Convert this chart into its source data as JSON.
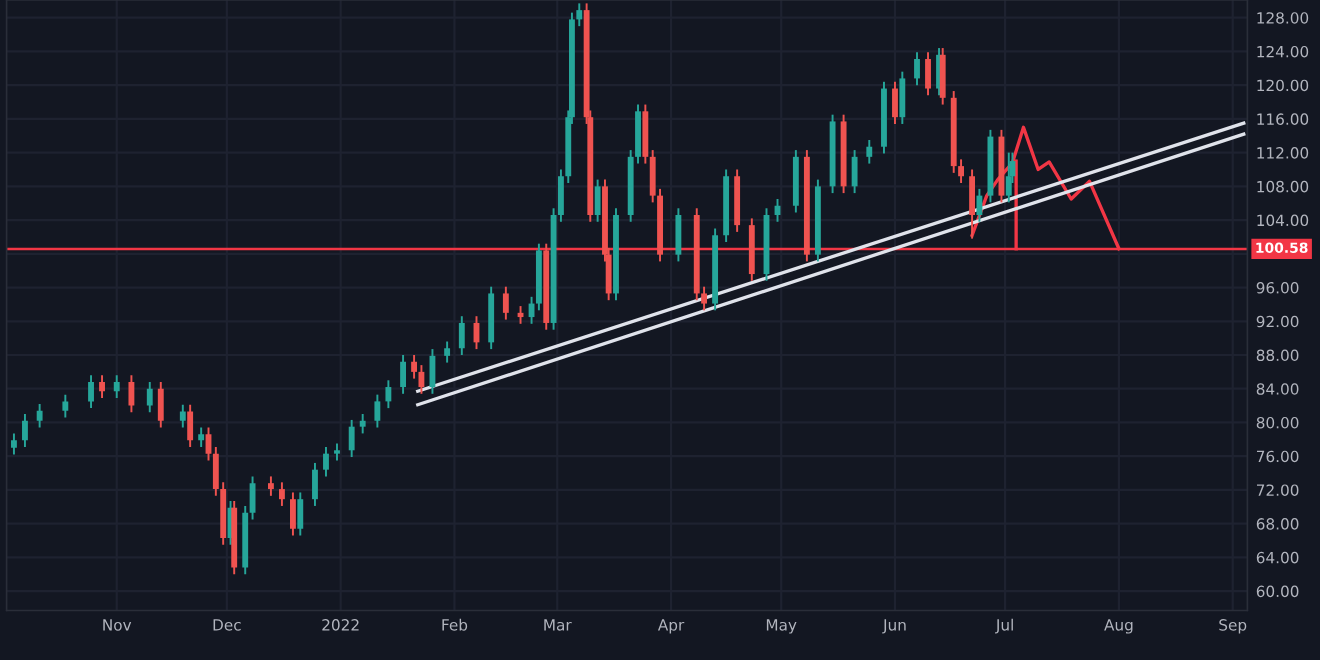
{
  "chart_data": {
    "type": "candlestick",
    "xlim": [
      "2021-10-02",
      "2022-09-05"
    ],
    "ylim": [
      57.7,
      130.1
    ],
    "xticks": [
      {
        "value": "2021-11-01",
        "label": "Nov"
      },
      {
        "value": "2021-12-01",
        "label": "Dec"
      },
      {
        "value": "2022-01-01",
        "label": "2022"
      },
      {
        "value": "2022-02-01",
        "label": "Feb"
      },
      {
        "value": "2022-03-01",
        "label": "Mar"
      },
      {
        "value": "2022-04-01",
        "label": "Apr"
      },
      {
        "value": "2022-05-01",
        "label": "May"
      },
      {
        "value": "2022-06-01",
        "label": "Jun"
      },
      {
        "value": "2022-07-01",
        "label": "Jul"
      },
      {
        "value": "2022-08-01",
        "label": "Aug"
      },
      {
        "value": "2022-09-01",
        "label": "Sep"
      }
    ],
    "yticks": [
      {
        "value": 60,
        "label": "60.00"
      },
      {
        "value": 64,
        "label": "64.00"
      },
      {
        "value": 68,
        "label": "68.00"
      },
      {
        "value": 72,
        "label": "72.00"
      },
      {
        "value": 76,
        "label": "76.00"
      },
      {
        "value": 80,
        "label": "80.00"
      },
      {
        "value": 84,
        "label": "84.00"
      },
      {
        "value": 88,
        "label": "88.00"
      },
      {
        "value": 92,
        "label": "92.00"
      },
      {
        "value": 96,
        "label": "96.00"
      },
      {
        "value": 100,
        "label": null
      },
      {
        "value": 104,
        "label": "104.00"
      },
      {
        "value": 108,
        "label": "108.00"
      },
      {
        "value": 112,
        "label": "112.00"
      },
      {
        "value": 116,
        "label": "116.00"
      },
      {
        "value": 120,
        "label": "120.00"
      },
      {
        "value": 124,
        "label": "124.00"
      },
      {
        "value": 128,
        "label": "128.00"
      }
    ],
    "grid": true,
    "ref_lines": [
      {
        "axis": "y",
        "value": 100.58,
        "label": "100.58",
        "color": "#f23645"
      }
    ],
    "series": [
      {
        "colors": [
          "#26a69a",
          "#26a69a",
          "#26a69a",
          "#26a69a",
          "#26a69a",
          "#ef5350",
          "#26a69a",
          "#ef5350",
          "#26a69a",
          "#ef5350",
          "#26a69a",
          "#ef5350",
          "#26a69a",
          "#ef5350",
          "#ef5350",
          "#ef5350",
          "#26a69a",
          "#ef5350",
          "#26a69a",
          "#26a69a",
          "#ef5350",
          "#ef5350",
          "#ef5350",
          "#26a69a",
          "#26a69a",
          "#26a69a",
          "#26a69a",
          "#26a69a",
          "#26a69a",
          "#26a69a",
          "#26a69a",
          "#26a69a",
          "#ef5350",
          "#ef5350",
          "#26a69a",
          "#26a69a",
          "#26a69a",
          "#ef5350",
          "#26a69a",
          "#ef5350",
          "#ef5350",
          "#26a69a",
          "#26a69a",
          "#ef5350",
          "#26a69a",
          "#26a69a",
          "#26a69a",
          "#26a69a",
          "#26a69a",
          "#ef5350",
          "#ef5350",
          "#26a69a",
          "#ef5350",
          "#ef5350",
          "#26a69a",
          "#26a69a",
          "#26a69a",
          "#ef5350",
          "#ef5350",
          "#ef5350",
          "#26a69a",
          "#ef5350",
          "#ef5350",
          "#26a69a",
          "#26a69a",
          "#ef5350",
          "#ef5350",
          "#26a69a",
          "#26a69a",
          "#26a69a",
          "#ef5350",
          "#26a69a",
          "#26a69a",
          "#ef5350",
          "#26a69a",
          "#26a69a",
          "#26a69a",
          "#ef5350",
          "#26a69a",
          "#26a69a",
          "#ef5350",
          "#26a69a",
          "#ef5350",
          "#ef5350",
          "#ef5350",
          "#ef5350",
          "#26a69a",
          "#26a69a",
          "#ef5350",
          "#26a69a",
          "#26a69a"
        ],
        "x": [
          "2021-10-04",
          "2021-10-07",
          "2021-10-11",
          "2021-10-18",
          "2021-10-25",
          "2021-10-28",
          "2021-11-01",
          "2021-11-05",
          "2021-11-10",
          "2021-11-13",
          "2021-11-19",
          "2021-11-21",
          "2021-11-24",
          "2021-11-26",
          "2021-11-28",
          "2021-11-30",
          "2021-12-02",
          "2021-12-03",
          "2021-12-06",
          "2021-12-08",
          "2021-12-13",
          "2021-12-16",
          "2021-12-19",
          "2021-12-21",
          "2021-12-25",
          "2021-12-28",
          "2021-12-31",
          "2022-01-04",
          "2022-01-07",
          "2022-01-11",
          "2022-01-14",
          "2022-01-18",
          "2022-01-21",
          "2022-01-23",
          "2022-01-26",
          "2022-01-30",
          "2022-02-03",
          "2022-02-07",
          "2022-02-11",
          "2022-02-15",
          "2022-02-19",
          "2022-02-22",
          "2022-02-24",
          "2022-02-26",
          "2022-02-28",
          "2022-03-02",
          "2022-03-04",
          "2022-03-05",
          "2022-03-07",
          "2022-03-09",
          "2022-03-10",
          "2022-03-12",
          "2022-03-14",
          "2022-03-15",
          "2022-03-17",
          "2022-03-21",
          "2022-03-23",
          "2022-03-25",
          "2022-03-27",
          "2022-03-29",
          "2022-04-03",
          "2022-04-08",
          "2022-04-10",
          "2022-04-13",
          "2022-04-16",
          "2022-04-19",
          "2022-04-23",
          "2022-04-27",
          "2022-04-30",
          "2022-05-05",
          "2022-05-08",
          "2022-05-11",
          "2022-05-15",
          "2022-05-18",
          "2022-05-21",
          "2022-05-25",
          "2022-05-29",
          "2022-06-01",
          "2022-06-03",
          "2022-06-07",
          "2022-06-10",
          "2022-06-13",
          "2022-06-14",
          "2022-06-17",
          "2022-06-19",
          "2022-06-22",
          "2022-06-24",
          "2022-06-27",
          "2022-06-30",
          "2022-07-02",
          "2022-07-03"
        ],
        "ohlc": [
          [
            77.0,
            78.7,
            76.2,
            77.9
          ],
          [
            77.9,
            81.0,
            77.1,
            80.2
          ],
          [
            80.2,
            82.2,
            79.4,
            81.4
          ],
          [
            81.4,
            83.3,
            80.6,
            82.5
          ],
          [
            82.5,
            85.6,
            81.7,
            84.8
          ],
          [
            84.8,
            85.6,
            82.9,
            83.7
          ],
          [
            83.7,
            85.6,
            82.9,
            84.8
          ],
          [
            84.8,
            85.6,
            81.2,
            82.0
          ],
          [
            82.0,
            84.8,
            81.2,
            84.0
          ],
          [
            84.0,
            84.8,
            79.4,
            80.2
          ],
          [
            80.2,
            82.1,
            79.4,
            81.3
          ],
          [
            81.3,
            82.1,
            77.1,
            77.9
          ],
          [
            77.9,
            79.4,
            77.1,
            78.6
          ],
          [
            78.6,
            79.4,
            75.5,
            76.3
          ],
          [
            76.3,
            77.1,
            71.3,
            72.1
          ],
          [
            72.1,
            72.9,
            65.5,
            66.3
          ],
          [
            66.3,
            70.7,
            65.5,
            69.9
          ],
          [
            69.9,
            70.7,
            62.0,
            62.8
          ],
          [
            62.8,
            70.1,
            62.0,
            69.3
          ],
          [
            69.3,
            73.6,
            68.5,
            72.8
          ],
          [
            72.8,
            73.6,
            71.3,
            72.1
          ],
          [
            72.1,
            72.9,
            70.1,
            70.9
          ],
          [
            70.9,
            71.7,
            66.6,
            67.4
          ],
          [
            67.4,
            71.7,
            66.6,
            70.9
          ],
          [
            70.9,
            75.2,
            70.1,
            74.4
          ],
          [
            74.4,
            77.1,
            73.6,
            76.3
          ],
          [
            76.3,
            77.5,
            75.5,
            76.7
          ],
          [
            76.7,
            80.3,
            75.9,
            79.5
          ],
          [
            79.5,
            81.0,
            78.7,
            80.2
          ],
          [
            80.2,
            83.3,
            79.4,
            82.5
          ],
          [
            82.5,
            85.0,
            81.7,
            84.2
          ],
          [
            84.2,
            88.0,
            83.4,
            87.2
          ],
          [
            87.2,
            88.0,
            85.2,
            86.0
          ],
          [
            86.0,
            86.8,
            83.4,
            84.2
          ],
          [
            84.2,
            88.7,
            83.4,
            87.9
          ],
          [
            87.9,
            89.6,
            87.1,
            88.8
          ],
          [
            88.8,
            92.6,
            88.0,
            91.8
          ],
          [
            91.8,
            92.6,
            88.7,
            89.5
          ],
          [
            89.5,
            96.1,
            88.7,
            95.3
          ],
          [
            95.3,
            96.1,
            92.2,
            93.0
          ],
          [
            93.0,
            93.8,
            91.7,
            92.5
          ],
          [
            92.5,
            94.9,
            91.7,
            94.1
          ],
          [
            94.1,
            101.2,
            93.3,
            100.4
          ],
          [
            100.4,
            101.2,
            91.0,
            91.8
          ],
          [
            91.8,
            105.4,
            91.0,
            104.6
          ],
          [
            104.6,
            110.0,
            103.8,
            109.2
          ],
          [
            109.2,
            117.0,
            108.4,
            116.2
          ],
          [
            116.2,
            128.6,
            115.4,
            127.8
          ],
          [
            127.8,
            129.7,
            127.0,
            128.9
          ],
          [
            128.9,
            129.7,
            115.4,
            116.2
          ],
          [
            116.2,
            117.0,
            103.8,
            104.6
          ],
          [
            104.6,
            108.8,
            103.8,
            108.0
          ],
          [
            108.0,
            108.8,
            99.1,
            99.9
          ],
          [
            99.9,
            100.7,
            94.5,
            95.3
          ],
          [
            95.3,
            105.4,
            94.5,
            104.6
          ],
          [
            104.6,
            112.3,
            103.8,
            111.5
          ],
          [
            111.5,
            117.7,
            110.7,
            116.9
          ],
          [
            116.9,
            117.7,
            110.7,
            111.5
          ],
          [
            111.5,
            112.3,
            106.1,
            106.9
          ],
          [
            106.9,
            107.7,
            99.1,
            99.9
          ],
          [
            99.9,
            105.4,
            99.1,
            104.6
          ],
          [
            104.6,
            105.4,
            94.5,
            95.3
          ],
          [
            95.3,
            96.1,
            93.3,
            94.1
          ],
          [
            94.1,
            103.0,
            93.3,
            102.2
          ],
          [
            102.2,
            110.0,
            101.4,
            109.2
          ],
          [
            109.2,
            110.0,
            102.6,
            103.4
          ],
          [
            103.4,
            104.2,
            96.8,
            97.6
          ],
          [
            97.6,
            105.4,
            96.8,
            104.6
          ],
          [
            104.6,
            106.5,
            103.8,
            105.7
          ],
          [
            105.7,
            112.3,
            104.9,
            111.5
          ],
          [
            111.5,
            112.3,
            99.1,
            99.9
          ],
          [
            99.9,
            108.8,
            99.1,
            108.0
          ],
          [
            108.0,
            116.5,
            107.2,
            115.7
          ],
          [
            115.7,
            116.5,
            107.2,
            108.0
          ],
          [
            108.0,
            112.3,
            107.2,
            111.5
          ],
          [
            111.5,
            113.5,
            110.7,
            112.7
          ],
          [
            112.7,
            120.4,
            111.9,
            119.6
          ],
          [
            119.6,
            120.4,
            115.4,
            116.2
          ],
          [
            116.2,
            121.6,
            115.4,
            120.8
          ],
          [
            120.8,
            123.9,
            120.0,
            123.1
          ],
          [
            123.1,
            123.9,
            118.8,
            119.6
          ],
          [
            119.6,
            124.4,
            118.8,
            123.6
          ],
          [
            123.6,
            124.4,
            117.7,
            118.5
          ],
          [
            118.5,
            119.3,
            109.6,
            110.4
          ],
          [
            110.4,
            111.2,
            108.4,
            109.2
          ],
          [
            109.2,
            110.0,
            101.8,
            104.6
          ],
          [
            104.6,
            107.7,
            103.8,
            106.9
          ],
          [
            106.9,
            114.7,
            106.1,
            113.9
          ],
          [
            113.9,
            114.7,
            106.1,
            106.9
          ],
          [
            106.9,
            112.0,
            106.1,
            109.2
          ],
          [
            109.2,
            112.0,
            108.4,
            111.0
          ]
        ]
      },
      {
        "type": "line",
        "color": "#f23645",
        "x": [
          "2022-06-22",
          "2022-06-26",
          "2022-06-29",
          "2022-07-03",
          "2022-07-06",
          "2022-07-10",
          "2022-07-13",
          "2022-07-19",
          "2022-07-24",
          "2022-08-01"
        ],
        "values": [
          102.2,
          106.9,
          108.8,
          110.8,
          115.0,
          110.0,
          110.9,
          106.5,
          108.6,
          100.6
        ]
      },
      {
        "type": "line",
        "color": "#f23645",
        "x": [
          "2022-07-04",
          "2022-07-04"
        ],
        "values": [
          111.0,
          100.6
        ]
      },
      {
        "type": "line",
        "color": "#e0e3eb",
        "x": [
          "2022-01-22",
          "2022-09-04"
        ],
        "values": [
          83.7,
          115.5
        ]
      },
      {
        "type": "line",
        "color": "#e0e3eb",
        "x": [
          "2022-01-22",
          "2022-09-04"
        ],
        "values": [
          82.1,
          114.2
        ]
      }
    ]
  }
}
